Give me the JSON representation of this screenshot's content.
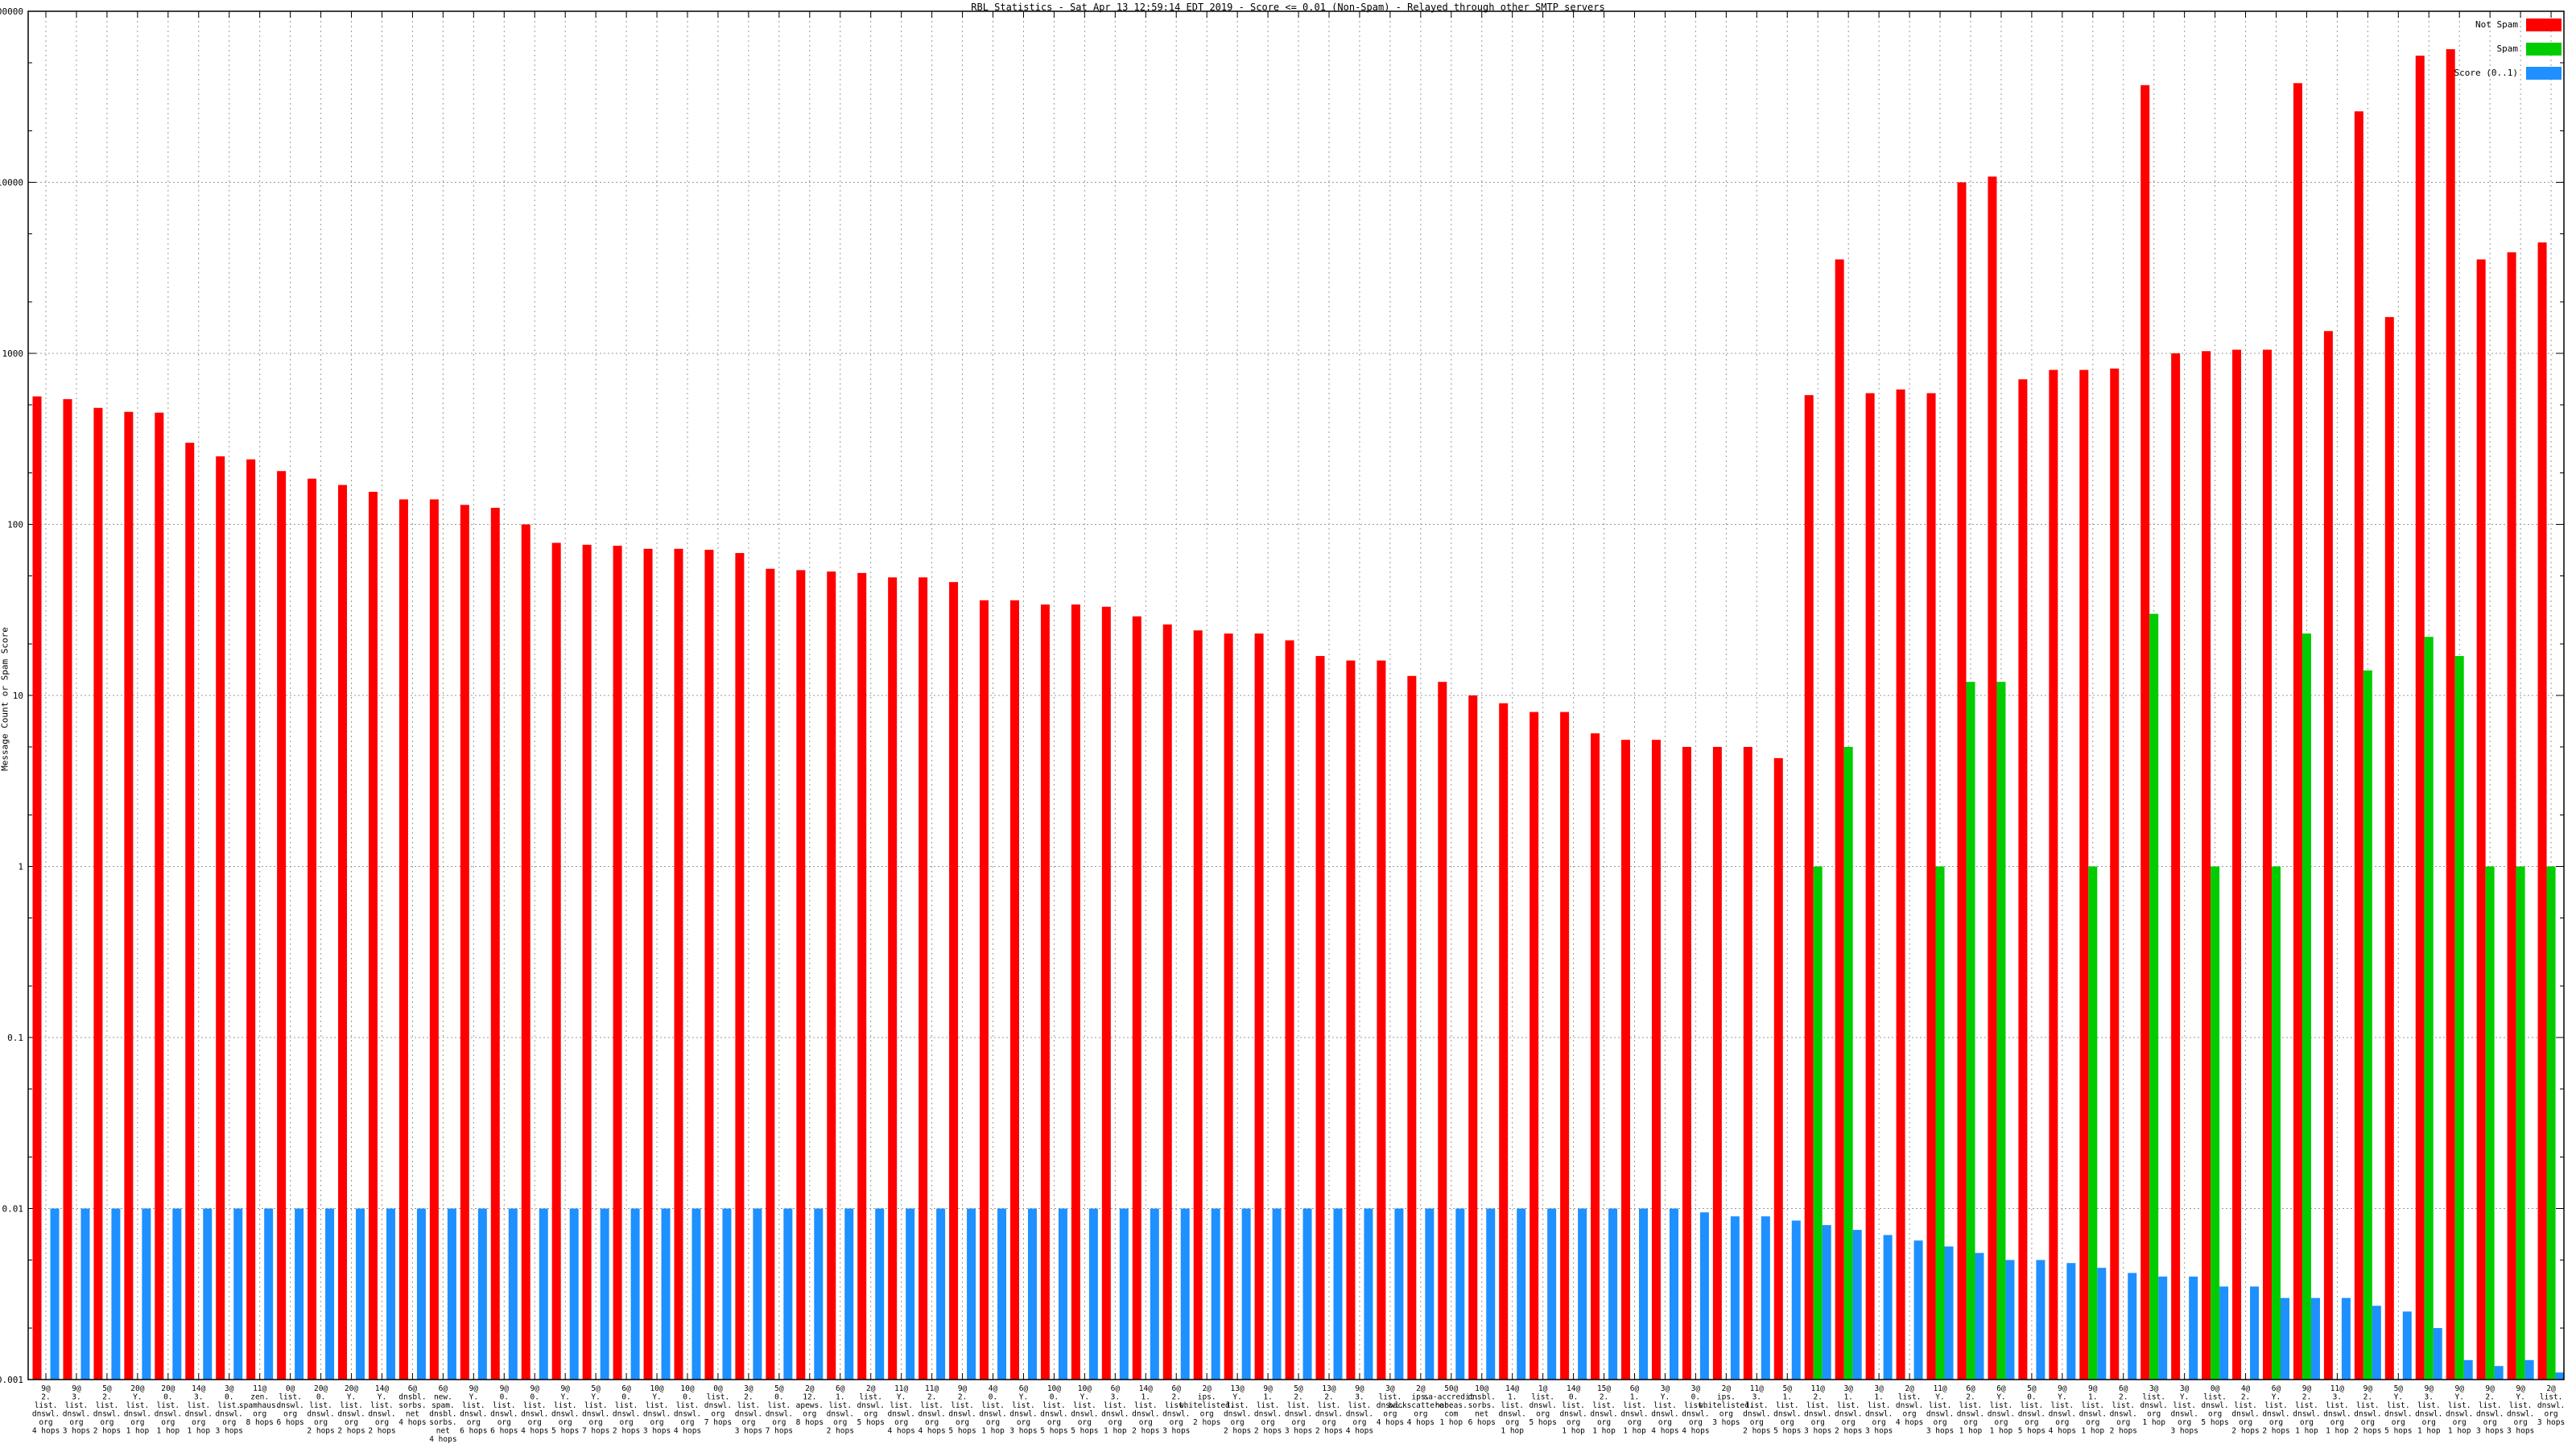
{
  "title": "RBL Statistics - Sat Apr 13 12:59:14 EDT 2019 - Score <= 0.01 (Non-Spam) - Relayed through other SMTP servers",
  "y_axis": {
    "label": "Message Count or Spam Score",
    "tick_labels": [
      "100000",
      "10000",
      "1000",
      "100",
      "10",
      "1",
      "0.1",
      "0.01",
      "0.001"
    ]
  },
  "legend": [
    {
      "label": "Not Spam",
      "color": "#ff0000"
    },
    {
      "label": "Spam",
      "color": "#00cc00"
    },
    {
      "label": "Score (0..1)",
      "color": "#1e90ff"
    }
  ],
  "colors": {
    "not_spam": "#ff0000",
    "spam": "#00cc00",
    "score": "#1e90ff",
    "grid": "#999999",
    "border": "#000000"
  },
  "chart_data": {
    "type": "bar",
    "y_scale": "log",
    "ylim": [
      0.001,
      100000
    ],
    "grid": true,
    "legend_position": "top-right",
    "title": "RBL Statistics - Sat Apr 13 12:59:14 EDT 2019 - Score <= 0.01 (Non-Spam) - Relayed through other SMTP servers",
    "ylabel": "Message Count or Spam Score",
    "series_names": [
      "Not Spam",
      "Spam",
      "Score (0..1)"
    ],
    "groups": [
      {
        "rbl": "9@2.list.dnswl.org",
        "hops": "4 hops",
        "not_spam": 560,
        "spam": 0.001,
        "score": 0.01
      },
      {
        "rbl": "9@3.list.dnswl.org",
        "hops": "3 hops",
        "not_spam": 540,
        "spam": 0.001,
        "score": 0.01
      },
      {
        "rbl": "5@2.list.dnswl.org",
        "hops": "2 hops",
        "not_spam": 480,
        "spam": 0.001,
        "score": 0.01
      },
      {
        "rbl": "20@Y.list.dnswl.org",
        "hops": "1 hop",
        "not_spam": 455,
        "spam": 0.001,
        "score": 0.01
      },
      {
        "rbl": "20@0.list.dnswl.org",
        "hops": "1 hop",
        "not_spam": 450,
        "spam": 0.001,
        "score": 0.01
      },
      {
        "rbl": "14@3.list.dnswl.org",
        "hops": "1 hop",
        "not_spam": 300,
        "spam": 0.001,
        "score": 0.01
      },
      {
        "rbl": "3@0.list.dnswl.org",
        "hops": "3 hops",
        "not_spam": 250,
        "spam": 0.001,
        "score": 0.01
      },
      {
        "rbl": "11@zen.spamhaus.org",
        "hops": "8 hops",
        "not_spam": 240,
        "spam": 0.001,
        "score": 0.01
      },
      {
        "rbl": "0@list.dnswl.org",
        "hops": "6 hops",
        "not_spam": 205,
        "spam": 0.001,
        "score": 0.01
      },
      {
        "rbl": "20@0.list.dnswl.org",
        "hops": "2 hops",
        "not_spam": 185,
        "spam": 0.001,
        "score": 0.01
      },
      {
        "rbl": "20@Y.list.dnswl.org",
        "hops": "2 hops",
        "not_spam": 170,
        "spam": 0.001,
        "score": 0.01
      },
      {
        "rbl": "14@Y.list.dnswl.org",
        "hops": "2 hops",
        "not_spam": 155,
        "spam": 0.001,
        "score": 0.01
      },
      {
        "rbl": "6@dnsbl.sorbs.net",
        "hops": "4 hops",
        "not_spam": 140,
        "spam": 0.001,
        "score": 0.01
      },
      {
        "rbl": "6@new.spam.dnsbl.sorbs.net",
        "hops": "4 hops",
        "not_spam": 140,
        "spam": 0.001,
        "score": 0.01
      },
      {
        "rbl": "9@Y.list.dnswl.org",
        "hops": "6 hops",
        "not_spam": 130,
        "spam": 0.001,
        "score": 0.01
      },
      {
        "rbl": "9@0.list.dnswl.org",
        "hops": "6 hops",
        "not_spam": 125,
        "spam": 0.001,
        "score": 0.01
      },
      {
        "rbl": "9@0.list.dnswl.org",
        "hops": "4 hops",
        "not_spam": 100,
        "spam": 0.001,
        "score": 0.01
      },
      {
        "rbl": "9@Y.list.dnswl.org",
        "hops": "5 hops",
        "not_spam": 78,
        "spam": 0.001,
        "score": 0.01
      },
      {
        "rbl": "5@Y.list.dnswl.org",
        "hops": "7 hops",
        "not_spam": 76,
        "spam": 0.001,
        "score": 0.01
      },
      {
        "rbl": "6@0.list.dnswl.org",
        "hops": "2 hops",
        "not_spam": 75,
        "spam": 0.001,
        "score": 0.01
      },
      {
        "rbl": "10@Y.list.dnswl.org",
        "hops": "3 hops",
        "not_spam": 72,
        "spam": 0.001,
        "score": 0.01
      },
      {
        "rbl": "10@0.list.dnswl.org",
        "hops": "4 hops",
        "not_spam": 72,
        "spam": 0.001,
        "score": 0.01
      },
      {
        "rbl": "0@list.dnswl.org",
        "hops": "7 hops",
        "not_spam": 71,
        "spam": 0.001,
        "score": 0.01
      },
      {
        "rbl": "3@2.list.dnswl.org",
        "hops": "3 hops",
        "not_spam": 68,
        "spam": 0.001,
        "score": 0.01
      },
      {
        "rbl": "5@0.list.dnswl.org",
        "hops": "7 hops",
        "not_spam": 55,
        "spam": 0.001,
        "score": 0.01
      },
      {
        "rbl": "2@12.apews.org",
        "hops": "8 hops",
        "not_spam": 54,
        "spam": 0.001,
        "score": 0.01
      },
      {
        "rbl": "6@1.list.dnswl.org",
        "hops": "2 hops",
        "not_spam": 53,
        "spam": 0.001,
        "score": 0.01
      },
      {
        "rbl": "2@list.dnswl.org",
        "hops": "5 hops",
        "not_spam": 52,
        "spam": 0.001,
        "score": 0.01
      },
      {
        "rbl": "11@Y.list.dnswl.org",
        "hops": "4 hops",
        "not_spam": 49,
        "spam": 0.001,
        "score": 0.01
      },
      {
        "rbl": "11@2.list.dnswl.org",
        "hops": "4 hops",
        "not_spam": 49,
        "spam": 0.001,
        "score": 0.01
      },
      {
        "rbl": "9@2.list.dnswl.org",
        "hops": "5 hops",
        "not_spam": 46,
        "spam": 0.001,
        "score": 0.01
      },
      {
        "rbl": "4@0.list.dnswl.org",
        "hops": "1 hop",
        "not_spam": 36,
        "spam": 0.001,
        "score": 0.01
      },
      {
        "rbl": "6@Y.list.dnswl.org",
        "hops": "3 hops",
        "not_spam": 36,
        "spam": 0.001,
        "score": 0.01
      },
      {
        "rbl": "10@0.list.dnswl.org",
        "hops": "5 hops",
        "not_spam": 34,
        "spam": 0.001,
        "score": 0.01
      },
      {
        "rbl": "10@Y.list.dnswl.org",
        "hops": "5 hops",
        "not_spam": 34,
        "spam": 0.001,
        "score": 0.01
      },
      {
        "rbl": "6@3.list.dnswl.org",
        "hops": "1 hop",
        "not_spam": 33,
        "spam": 0.001,
        "score": 0.01
      },
      {
        "rbl": "14@1.list.dnswl.org",
        "hops": "2 hops",
        "not_spam": 29,
        "spam": 0.001,
        "score": 0.01
      },
      {
        "rbl": "6@2.list.dnswl.org",
        "hops": "3 hops",
        "not_spam": 26,
        "spam": 0.001,
        "score": 0.01
      },
      {
        "rbl": "2@ips.whitelisted.org",
        "hops": "2 hops",
        "not_spam": 24,
        "spam": 0.001,
        "score": 0.01
      },
      {
        "rbl": "13@Y.list.dnswl.org",
        "hops": "2 hops",
        "not_spam": 23,
        "spam": 0.001,
        "score": 0.01
      },
      {
        "rbl": "9@1.list.dnswl.org",
        "hops": "2 hops",
        "not_spam": 23,
        "spam": 0.001,
        "score": 0.01
      },
      {
        "rbl": "5@2.list.dnswl.org",
        "hops": "3 hops",
        "not_spam": 21,
        "spam": 0.001,
        "score": 0.01
      },
      {
        "rbl": "13@2.list.dnswl.org",
        "hops": "2 hops",
        "not_spam": 17,
        "spam": 0.001,
        "score": 0.01
      },
      {
        "rbl": "9@3.list.dnswl.org",
        "hops": "4 hops",
        "not_spam": 16,
        "spam": 0.001,
        "score": 0.01
      },
      {
        "rbl": "3@list.dnswl.org",
        "hops": "4 hops",
        "not_spam": 16,
        "spam": 0.001,
        "score": 0.01
      },
      {
        "rbl": "2@ips.backscatterer.org",
        "hops": "4 hops",
        "not_spam": 13,
        "spam": 0.001,
        "score": 0.01
      },
      {
        "rbl": "50@sa-accredit.habeas.com",
        "hops": "1 hop",
        "not_spam": 12,
        "spam": 0.001,
        "score": 0.01
      },
      {
        "rbl": "10@dnsbl.sorbs.net",
        "hops": "6 hops",
        "not_spam": 10,
        "spam": 0.001,
        "score": 0.01
      },
      {
        "rbl": "14@1.list.dnswl.org",
        "hops": "1 hop",
        "not_spam": 9,
        "spam": 0.001,
        "score": 0.01
      },
      {
        "rbl": "1@list.dnswl.org",
        "hops": "5 hops",
        "not_spam": 8,
        "spam": 0.001,
        "score": 0.01
      },
      {
        "rbl": "14@0.list.dnswl.org",
        "hops": "1 hop",
        "not_spam": 8,
        "spam": 0.001,
        "score": 0.01
      },
      {
        "rbl": "15@2.list.dnswl.org",
        "hops": "1 hop",
        "not_spam": 6,
        "spam": 0.001,
        "score": 0.01
      },
      {
        "rbl": "6@1.list.dnswl.org",
        "hops": "1 hop",
        "not_spam": 5.5,
        "spam": 0.001,
        "score": 0.01
      },
      {
        "rbl": "3@Y.list.dnswl.org",
        "hops": "4 hops",
        "not_spam": 5.5,
        "spam": 0.001,
        "score": 0.01
      },
      {
        "rbl": "3@0.list.dnswl.org",
        "hops": "4 hops",
        "not_spam": 5,
        "spam": 0.001,
        "score": 0.0095
      },
      {
        "rbl": "2@ips.whitelisted.org",
        "hops": "3 hops",
        "not_spam": 5,
        "spam": 0.001,
        "score": 0.009
      },
      {
        "rbl": "11@3.list.dnswl.org",
        "hops": "2 hops",
        "not_spam": 5,
        "spam": 0.001,
        "score": 0.009
      },
      {
        "rbl": "5@1.list.dnswl.org",
        "hops": "5 hops",
        "not_spam": 4.3,
        "spam": 0.001,
        "score": 0.0085
      },
      {
        "rbl": "11@2.list.dnswl.org",
        "hops": "3 hops",
        "not_spam": 570,
        "spam": 1,
        "score": 0.008
      },
      {
        "rbl": "3@1.list.dnswl.org",
        "hops": "2 hops",
        "not_spam": 3540,
        "spam": 5,
        "score": 0.0075
      },
      {
        "rbl": "3@1.list.dnswl.org",
        "hops": "3 hops",
        "not_spam": 585,
        "spam": 0.001,
        "score": 0.007
      },
      {
        "rbl": "2@list.dnswl.org",
        "hops": "4 hops",
        "not_spam": 615,
        "spam": 0.001,
        "score": 0.0065
      },
      {
        "rbl": "11@Y.list.dnswl.org",
        "hops": "3 hops",
        "not_spam": 585,
        "spam": 1,
        "score": 0.006
      },
      {
        "rbl": "6@2.list.dnswl.org",
        "hops": "1 hop",
        "not_spam": 10000,
        "spam": 12,
        "score": 0.0055
      },
      {
        "rbl": "6@Y.list.dnswl.org",
        "hops": "1 hop",
        "not_spam": 10800,
        "spam": 12,
        "score": 0.005
      },
      {
        "rbl": "5@0.list.dnswl.org",
        "hops": "5 hops",
        "not_spam": 705,
        "spam": 0.001,
        "score": 0.005
      },
      {
        "rbl": "9@Y.list.dnswl.org",
        "hops": "4 hops",
        "not_spam": 800,
        "spam": 0.001,
        "score": 0.0048
      },
      {
        "rbl": "9@1.list.dnswl.org",
        "hops": "1 hop",
        "not_spam": 800,
        "spam": 1,
        "score": 0.0045
      },
      {
        "rbl": "6@2.list.dnswl.org",
        "hops": "2 hops",
        "not_spam": 815,
        "spam": 0.001,
        "score": 0.0042
      },
      {
        "rbl": "3@list.dnswl.org",
        "hops": "1 hop",
        "not_spam": 37000,
        "spam": 30,
        "score": 0.004
      },
      {
        "rbl": "3@Y.list.dnswl.org",
        "hops": "3 hops",
        "not_spam": 1000,
        "spam": 0.001,
        "score": 0.004
      },
      {
        "rbl": "0@list.dnswl.org",
        "hops": "5 hops",
        "not_spam": 1030,
        "spam": 1,
        "score": 0.0035
      },
      {
        "rbl": "4@2.list.dnswl.org",
        "hops": "2 hops",
        "not_spam": 1050,
        "spam": 0.001,
        "score": 0.0035
      },
      {
        "rbl": "6@Y.list.dnswl.org",
        "hops": "2 hops",
        "not_spam": 1050,
        "spam": 1,
        "score": 0.003
      },
      {
        "rbl": "9@2.list.dnswl.org",
        "hops": "1 hop",
        "not_spam": 38000,
        "spam": 23,
        "score": 0.003
      },
      {
        "rbl": "11@3.list.dnswl.org",
        "hops": "1 hop",
        "not_spam": 1350,
        "spam": 0.001,
        "score": 0.003
      },
      {
        "rbl": "9@2.list.dnswl.org",
        "hops": "2 hops",
        "not_spam": 26000,
        "spam": 14,
        "score": 0.0027
      },
      {
        "rbl": "5@Y.list.dnswl.org",
        "hops": "5 hops",
        "not_spam": 1630,
        "spam": 0.001,
        "score": 0.0025
      },
      {
        "rbl": "9@3.list.dnswl.org",
        "hops": "1 hop",
        "not_spam": 55000,
        "spam": 22,
        "score": 0.002
      },
      {
        "rbl": "9@Y.list.dnswl.org",
        "hops": "1 hop",
        "not_spam": 60000,
        "spam": 17,
        "score": 0.0013
      },
      {
        "rbl": "9@2.list.dnswl.org",
        "hops": "3 hops",
        "not_spam": 3540,
        "spam": 1,
        "score": 0.0012
      },
      {
        "rbl": "9@Y.list.dnswl.org",
        "hops": "3 hops",
        "not_spam": 3900,
        "spam": 1,
        "score": 0.0013
      },
      {
        "rbl": "2@list.dnswl.org",
        "hops": "3 hops",
        "not_spam": 4450,
        "spam": 1,
        "score": 0.0011
      }
    ]
  }
}
